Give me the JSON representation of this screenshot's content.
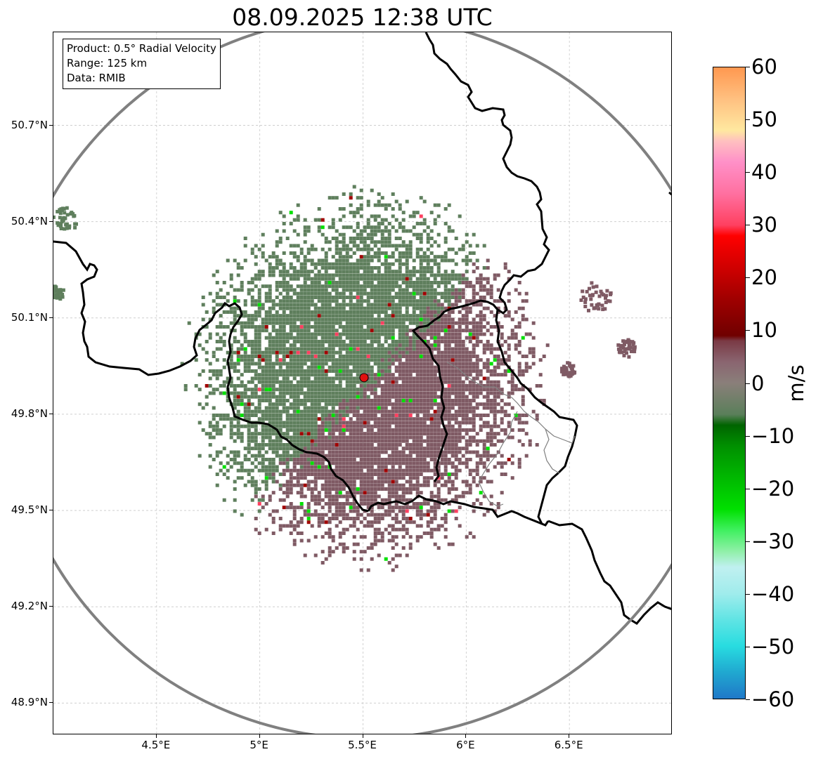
{
  "title": "08.09.2025 12:38 UTC",
  "info_box": {
    "product": "Product: 0.5° Radial Velocity",
    "range": "Range: 125 km",
    "data": "Data: RMIB"
  },
  "map": {
    "lon_range": [
      4.0,
      7.0
    ],
    "lat_range": [
      48.8,
      50.99
    ],
    "lat_ticks": [
      {
        "value": 50.7,
        "label": "50.7°N"
      },
      {
        "value": 50.4,
        "label": "50.4°N"
      },
      {
        "value": 50.1,
        "label": "50.1°N"
      },
      {
        "value": 49.8,
        "label": "49.8°N"
      },
      {
        "value": 49.5,
        "label": "49.5°N"
      },
      {
        "value": 49.2,
        "label": "49.2°N"
      },
      {
        "value": 48.9,
        "label": "48.9°N"
      }
    ],
    "lon_ticks": [
      {
        "value": 4.5,
        "label": "4.5°E"
      },
      {
        "value": 5.0,
        "label": "5°E"
      },
      {
        "value": 5.5,
        "label": "5.5°E"
      },
      {
        "value": 6.0,
        "label": "6°E"
      },
      {
        "value": 6.5,
        "label": "6.5°E"
      }
    ],
    "radar_site": {
      "lon": 5.505,
      "lat": 49.914
    },
    "range_km": 125,
    "range_ring_color": "#808080",
    "radar_marker_color": "#e01010",
    "border_color": "#000000",
    "inner_border_color": "#808080",
    "inbound_color": "#5f7f5d",
    "outbound_color": "#7f5a64"
  },
  "colorbar": {
    "min": -60,
    "max": 60,
    "unit": "m/s",
    "ticks": [
      {
        "value": 60,
        "label": "60"
      },
      {
        "value": 50,
        "label": "50"
      },
      {
        "value": 40,
        "label": "40"
      },
      {
        "value": 30,
        "label": "30"
      },
      {
        "value": 20,
        "label": "20"
      },
      {
        "value": 10,
        "label": "10"
      },
      {
        "value": 0,
        "label": "0"
      },
      {
        "value": -10,
        "label": "−10"
      },
      {
        "value": -20,
        "label": "−20"
      },
      {
        "value": -30,
        "label": "−30"
      },
      {
        "value": -40,
        "label": "−40"
      },
      {
        "value": -50,
        "label": "−50"
      },
      {
        "value": -60,
        "label": "−60"
      }
    ],
    "stops": [
      {
        "value": -60,
        "color": "#1f78c8"
      },
      {
        "value": -55,
        "color": "#20a8d0"
      },
      {
        "value": -50,
        "color": "#28dce0"
      },
      {
        "value": -45,
        "color": "#60e4e4"
      },
      {
        "value": -40,
        "color": "#a0ecec"
      },
      {
        "value": -35,
        "color": "#c0f0f0"
      },
      {
        "value": -32,
        "color": "#90f0a8"
      },
      {
        "value": -28,
        "color": "#40f060"
      },
      {
        "value": -24,
        "color": "#00e000"
      },
      {
        "value": -18,
        "color": "#00b800"
      },
      {
        "value": -12,
        "color": "#009000"
      },
      {
        "value": -8,
        "color": "#006400"
      },
      {
        "value": -6,
        "color": "#5a7f5a"
      },
      {
        "value": 0,
        "color": "#8a7f7a"
      },
      {
        "value": 4,
        "color": "#8a6570"
      },
      {
        "value": 8,
        "color": "#7a3a45"
      },
      {
        "value": 9,
        "color": "#700000"
      },
      {
        "value": 16,
        "color": "#a00000"
      },
      {
        "value": 22,
        "color": "#d00000"
      },
      {
        "value": 28,
        "color": "#ff0000"
      },
      {
        "value": 30,
        "color": "#ff4060"
      },
      {
        "value": 36,
        "color": "#ff70a0"
      },
      {
        "value": 42,
        "color": "#ff90c8"
      },
      {
        "value": 46,
        "color": "#ffc0c0"
      },
      {
        "value": 48,
        "color": "#ffe8a0"
      },
      {
        "value": 54,
        "color": "#ffc080"
      },
      {
        "value": 60,
        "color": "#ff9850"
      }
    ]
  }
}
